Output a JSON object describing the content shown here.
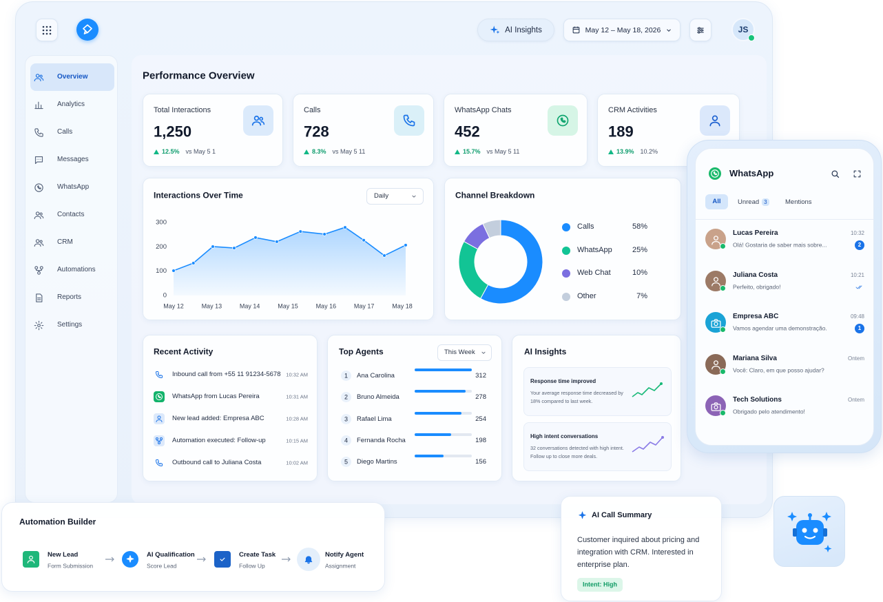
{
  "header": {
    "ai_insights": "AI Insights",
    "date_range": "May 12 – May 18, 2026",
    "avatar": "JS"
  },
  "sidebar": {
    "items": [
      "Overview",
      "Analytics",
      "Calls",
      "Messages",
      "WhatsApp",
      "Contacts",
      "CRM",
      "Automations",
      "Reports",
      "Settings"
    ]
  },
  "page_title": "Performance Overview",
  "kpis": [
    {
      "label": "Total Interactions",
      "value": "1,250",
      "change": "12.5%",
      "compare": "vs May 5 1"
    },
    {
      "label": "Calls",
      "value": "728",
      "change": "8.3%",
      "compare": "vs May 5 11"
    },
    {
      "label": "WhatsApp Chats",
      "value": "452",
      "change": "15.7%",
      "compare": "vs May 5 11"
    },
    {
      "label": "CRM Activities",
      "value": "189",
      "change": "13.9%",
      "compare": "10.2%"
    }
  ],
  "chart_data": [
    {
      "type": "line",
      "title": "Interactions Over Time",
      "dropdown": "Daily",
      "x": [
        0,
        0.52,
        1.03,
        1.59,
        2.15,
        2.71,
        3.33,
        3.96,
        4.5,
        4.99,
        5.53,
        6.09
      ],
      "series": [
        {
          "color": "#1a8cff",
          "values": [
            102,
            133,
            201,
            195,
            238,
            221,
            263,
            252,
            280,
            227,
            164,
            207
          ]
        }
      ],
      "xlim": [
        0,
        6
      ],
      "xticks": [
        {
          "value": 0,
          "label": "May 12"
        },
        {
          "value": 1,
          "label": "May 13"
        },
        {
          "value": 2,
          "label": "May 14"
        },
        {
          "value": 3,
          "label": "May 15"
        },
        {
          "value": 4,
          "label": "May 16"
        },
        {
          "value": 5,
          "label": "May 17"
        },
        {
          "value": 6,
          "label": "May 18"
        }
      ],
      "ylim": [
        0,
        300
      ],
      "yticks": [
        0,
        100,
        200,
        300
      ]
    },
    {
      "type": "pie",
      "title": "Channel Breakdown",
      "categories": [
        "Calls",
        "WhatsApp",
        "Web Chat",
        "Other"
      ],
      "values": [
        58,
        25,
        10,
        7
      ],
      "value_labels": [
        "58%",
        "25%",
        "10%",
        "7%"
      ],
      "colors": [
        "#1a8cff",
        "#12c495",
        "#7b6fe0",
        "#c3cedd"
      ]
    }
  ],
  "recent_activity": {
    "title": "Recent Activity",
    "items": [
      {
        "text": "Inbound call from +55 11 91234-5678",
        "time": "10:32 AM"
      },
      {
        "text": "WhatsApp from Lucas Pereira",
        "time": "10:31 AM"
      },
      {
        "text": "New lead added: Empresa ABC",
        "time": "10:28 AM"
      },
      {
        "text": "Automation executed: Follow-up",
        "time": "10:15 AM"
      },
      {
        "text": "Outbound call to Juliana Costa",
        "time": "10:02 AM"
      }
    ]
  },
  "top_agents": {
    "title": "Top Agents",
    "period": "This Week",
    "agents": [
      {
        "rank": 1,
        "name": "Ana Carolina",
        "value": 312
      },
      {
        "rank": 2,
        "name": "Bruno Almeida",
        "value": 278
      },
      {
        "rank": 3,
        "name": "Rafael Lima",
        "value": 254
      },
      {
        "rank": 4,
        "name": "Fernanda Rocha",
        "value": 198
      },
      {
        "rank": 5,
        "name": "Diego Martins",
        "value": 156
      }
    ]
  },
  "ai_insights": {
    "title": "AI Insights",
    "cards": [
      {
        "title": "Response time improved",
        "text": "Your average response time decreased by 18% compared to last week."
      },
      {
        "title": "High intent conversations",
        "text": "32 conversations detected with high intent. Follow up to close more deals."
      }
    ]
  },
  "whatsapp": {
    "title": "WhatsApp",
    "tabs": [
      {
        "label": "All"
      },
      {
        "label": "Unread",
        "count": 3
      },
      {
        "label": "Mentions"
      }
    ],
    "chats": [
      {
        "name": "Lucas Pereira",
        "message": "Olá! Gostaria de saber mais sobre...",
        "time": "10:32",
        "unread": 2
      },
      {
        "name": "Juliana Costa",
        "message": "Perfeito, obrigado!",
        "time": "10:21"
      },
      {
        "name": "Empresa ABC",
        "message": "Vamos agendar uma demonstração.",
        "time": "09:48",
        "unread": 1
      },
      {
        "name": "Mariana Silva",
        "message": "Você: Claro, em que posso ajudar?",
        "time": "Ontem"
      },
      {
        "name": "Tech Solutions",
        "message": "Obrigado pelo atendimento!",
        "time": "Ontem"
      }
    ]
  },
  "automation": {
    "title": "Automation Builder",
    "steps": [
      {
        "title": "New Lead",
        "subtitle": "Form Submission"
      },
      {
        "title": "AI Qualification",
        "subtitle": "Score Lead"
      },
      {
        "title": "Create Task",
        "subtitle": "Follow Up"
      },
      {
        "title": "Notify Agent",
        "subtitle": "Assignment"
      }
    ]
  },
  "call_summary": {
    "title": "AI Call Summary",
    "text": "Customer inquired about pricing and integration with CRM. Interested in enterprise plan.",
    "tag": "Intent: High"
  }
}
